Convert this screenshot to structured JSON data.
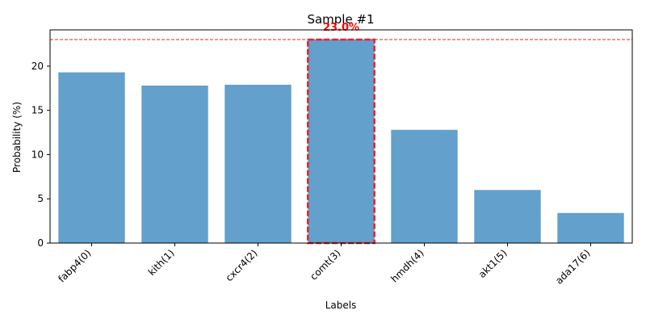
{
  "chart_data": {
    "type": "bar",
    "title": "Sample #1",
    "xlabel": "Labels",
    "ylabel": "Probability (%)",
    "categories": [
      "fabp4(0)",
      "kith(1)",
      "cxcr4(2)",
      "comt(3)",
      "hmdh(4)",
      "akt1(5)",
      "ada17(6)"
    ],
    "values": [
      19.3,
      17.8,
      17.9,
      23.0,
      12.8,
      6.0,
      3.4
    ],
    "ylim": [
      0,
      24.1
    ],
    "yticks": [
      0,
      5,
      10,
      15,
      20
    ],
    "grid": false,
    "bar_color": "#63a0cc",
    "highlight": {
      "index": 3,
      "value": 23.0,
      "label": "23.0%",
      "color": "#e8212a",
      "label_color": "#ff0000"
    }
  }
}
